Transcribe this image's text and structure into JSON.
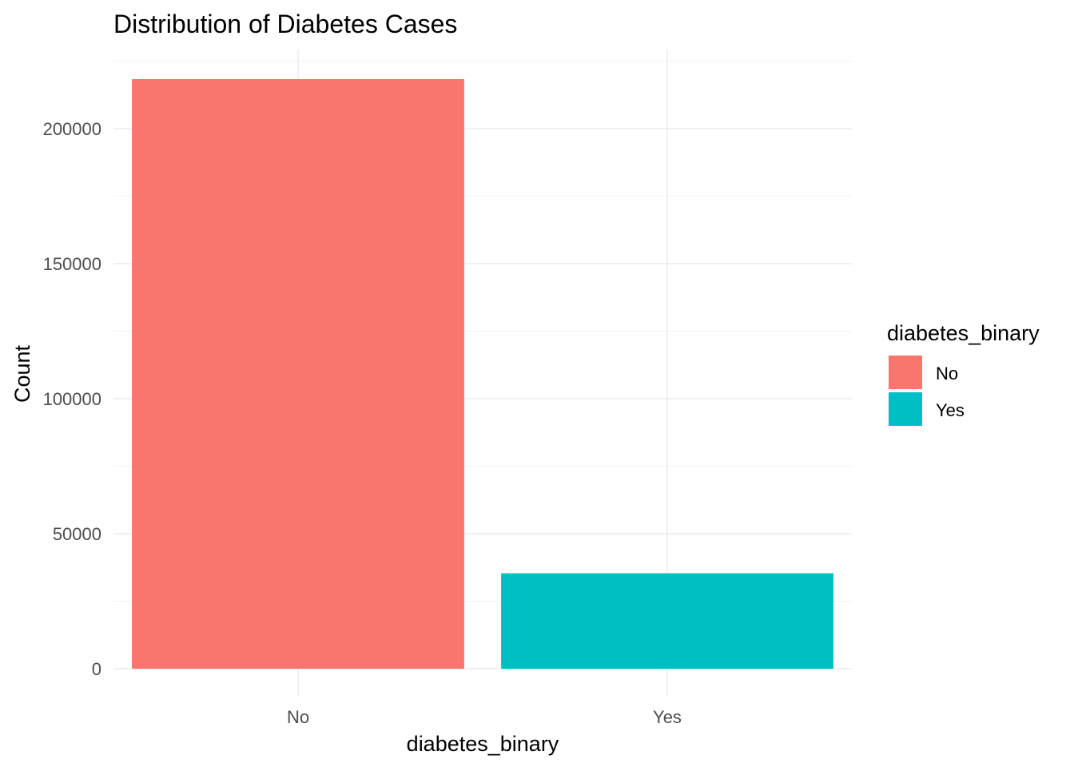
{
  "chart_data": {
    "type": "bar",
    "title": "Distribution of Diabetes Cases",
    "xlabel": "diabetes_binary",
    "ylabel": "Count",
    "categories": [
      "No",
      "Yes"
    ],
    "values": [
      218334,
      35346
    ],
    "colors": [
      "#F8766D",
      "#00BFC4"
    ],
    "ylim": [
      0,
      229000
    ],
    "yticks": [
      0,
      50000,
      100000,
      150000,
      200000
    ],
    "ytick_labels": [
      "0",
      "50000",
      "100000",
      "150000",
      "200000"
    ],
    "grid": true,
    "legend": {
      "title": "diabetes_binary",
      "placement": "right",
      "entries": [
        "No",
        "Yes"
      ]
    }
  }
}
